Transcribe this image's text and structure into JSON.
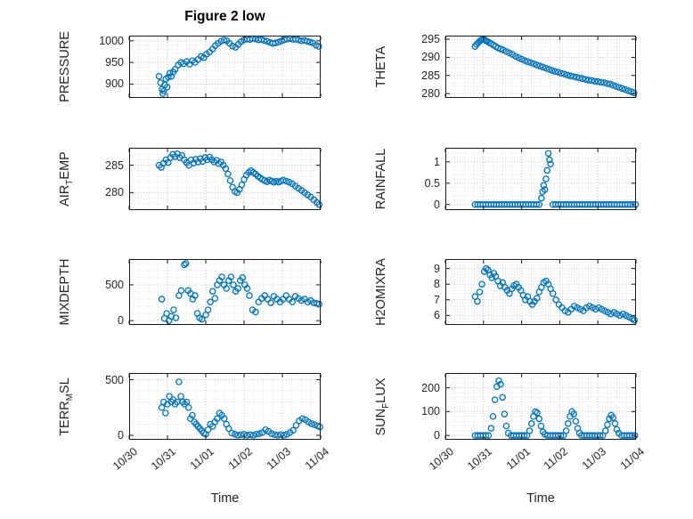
{
  "figure": {
    "title": "Figure 2 low",
    "xlabel": "Time",
    "marker_color": "#0072BD",
    "axis_color": "#262626",
    "xlim": [
      0,
      5
    ],
    "x_ticks": [
      0,
      1,
      2,
      3,
      4,
      5
    ],
    "x_tick_labels": [
      "10/30",
      "10/31",
      "11/01",
      "11/02",
      "11/03",
      "11/04"
    ],
    "grid": "minor dotted"
  },
  "chart_data": [
    {
      "type": "scatter",
      "name": "PRESSURE",
      "ylabel_parts": [
        "PRESSURE"
      ],
      "ylim": [
        868,
        1012
      ],
      "yticks": [
        900,
        950,
        1000
      ],
      "ytick_labels": [
        "900",
        "950",
        "1000"
      ],
      "x": [
        0.78,
        0.82,
        0.86,
        0.88,
        0.9,
        0.93,
        0.96,
        0.99,
        1.02,
        1.06,
        1.1,
        1.15,
        1.2,
        1.28,
        1.35,
        1.42,
        1.5,
        1.58,
        1.65,
        1.72,
        1.8,
        1.88,
        1.95,
        2.02,
        2.1,
        2.18,
        2.25,
        2.32,
        2.4,
        2.48,
        2.55,
        2.62,
        2.7,
        2.78,
        2.85,
        2.92,
        3.0,
        3.08,
        3.15,
        3.22,
        3.3,
        3.38,
        3.45,
        3.52,
        3.6,
        3.68,
        3.75,
        3.82,
        3.9,
        3.98,
        4.05,
        4.12,
        4.2,
        4.28,
        4.35,
        4.42,
        4.5,
        4.58,
        4.65,
        4.72,
        4.8,
        4.88,
        4.95
      ],
      "y": [
        918,
        903,
        888,
        878,
        884,
        898,
        912,
        893,
        916,
        925,
        918,
        928,
        934,
        944,
        950,
        947,
        952,
        946,
        954,
        950,
        957,
        964,
        961,
        969,
        974,
        981,
        989,
        994,
        999,
        1002,
        1000,
        994,
        988,
        985,
        992,
        998,
        1002,
        1004,
        1003,
        1005,
        1004,
        1002,
        1003,
        1001,
        999,
        996,
        994,
        995,
        997,
        1000,
        1002,
        1004,
        1005,
        1003,
        1004,
        1002,
        1000,
        1001,
        999,
        997,
        995,
        990,
        987
      ]
    },
    {
      "type": "scatter",
      "name": "THETA",
      "ylabel_parts": [
        "THETA"
      ],
      "ylim": [
        278.8,
        296
      ],
      "yticks": [
        280,
        285,
        290,
        295
      ],
      "ytick_labels": [
        "280",
        "285",
        "290",
        "295"
      ],
      "x": [
        0.78,
        0.82,
        0.86,
        0.9,
        0.94,
        0.98,
        1.02,
        1.06,
        1.1,
        1.15,
        1.2,
        1.26,
        1.32,
        1.38,
        1.45,
        1.52,
        1.6,
        1.68,
        1.76,
        1.84,
        1.92,
        2.0,
        2.08,
        2.16,
        2.24,
        2.32,
        2.4,
        2.48,
        2.56,
        2.64,
        2.72,
        2.8,
        2.88,
        2.96,
        3.04,
        3.12,
        3.2,
        3.28,
        3.36,
        3.44,
        3.52,
        3.6,
        3.68,
        3.76,
        3.84,
        3.92,
        4.0,
        4.08,
        4.16,
        4.24,
        4.32,
        4.4,
        4.48,
        4.56,
        4.64,
        4.72,
        4.8,
        4.88,
        4.95
      ],
      "y": [
        293.0,
        293.6,
        294.0,
        294.4,
        294.8,
        295.0,
        294.9,
        294.6,
        294.4,
        294.1,
        293.8,
        293.4,
        293.0,
        292.6,
        292.3,
        292.0,
        291.6,
        291.2,
        290.8,
        290.3,
        289.9,
        289.5,
        289.1,
        288.8,
        288.5,
        288.2,
        287.9,
        287.6,
        287.3,
        287.0,
        286.7,
        286.4,
        286.1,
        285.9,
        285.6,
        285.4,
        285.1,
        284.9,
        284.7,
        284.5,
        284.3,
        284.1,
        283.9,
        283.7,
        283.6,
        283.4,
        283.3,
        283.1,
        283.0,
        282.8,
        282.6,
        282.3,
        282.0,
        281.7,
        281.4,
        281.1,
        280.8,
        280.5,
        280.2
      ]
    },
    {
      "type": "scatter",
      "name": "AIR_TEMP",
      "ylabel_parts": [
        "AIR",
        "T",
        "EMP"
      ],
      "ylim": [
        276.8,
        288.2
      ],
      "yticks": [
        280,
        285
      ],
      "ytick_labels": [
        "280",
        "285"
      ],
      "x": [
        0.78,
        0.84,
        0.9,
        0.96,
        1.02,
        1.08,
        1.14,
        1.2,
        1.26,
        1.32,
        1.38,
        1.44,
        1.5,
        1.56,
        1.62,
        1.68,
        1.74,
        1.8,
        1.86,
        1.92,
        1.98,
        2.04,
        2.1,
        2.16,
        2.22,
        2.28,
        2.34,
        2.4,
        2.46,
        2.52,
        2.58,
        2.64,
        2.7,
        2.76,
        2.82,
        2.88,
        2.94,
        3.0,
        3.06,
        3.12,
        3.18,
        3.24,
        3.3,
        3.36,
        3.42,
        3.48,
        3.54,
        3.6,
        3.66,
        3.72,
        3.78,
        3.84,
        3.9,
        3.96,
        4.02,
        4.1,
        4.18,
        4.26,
        4.34,
        4.42,
        4.5,
        4.58,
        4.66,
        4.74,
        4.82,
        4.9,
        4.96
      ],
      "y": [
        285.0,
        284.6,
        285.4,
        286.0,
        285.5,
        286.4,
        287.0,
        286.6,
        287.1,
        286.4,
        286.8,
        286.0,
        285.5,
        285.0,
        286.0,
        285.4,
        286.1,
        285.6,
        286.2,
        285.7,
        286.4,
        286.0,
        286.5,
        286.0,
        285.6,
        285.9,
        285.3,
        285.6,
        285.0,
        284.4,
        283.4,
        282.2,
        281.0,
        280.2,
        280.0,
        280.6,
        281.4,
        282.4,
        283.2,
        283.7,
        284.0,
        283.7,
        283.4,
        283.0,
        282.7,
        282.4,
        282.2,
        282.0,
        282.3,
        282.1,
        281.9,
        282.1,
        281.9,
        282.1,
        282.3,
        282.1,
        281.9,
        281.6,
        281.2,
        280.8,
        280.4,
        280.0,
        279.6,
        279.2,
        278.7,
        278.2,
        277.8
      ]
    },
    {
      "type": "scatter",
      "name": "RAINFALL",
      "ylabel_parts": [
        "RAINFALL"
      ],
      "ylim": [
        -0.13,
        1.33
      ],
      "yticks": [
        0,
        0.5,
        1
      ],
      "ytick_labels": [
        "0",
        "0.5",
        "1"
      ],
      "x": [
        0.78,
        0.85,
        0.92,
        0.99,
        1.06,
        1.13,
        1.2,
        1.27,
        1.34,
        1.41,
        1.48,
        1.55,
        1.62,
        1.69,
        1.76,
        1.83,
        1.9,
        1.97,
        2.04,
        2.11,
        2.18,
        2.25,
        2.32,
        2.39,
        2.46,
        2.52,
        2.55,
        2.58,
        2.61,
        2.64,
        2.67,
        2.7,
        2.73,
        2.76,
        2.82,
        2.89,
        2.96,
        3.03,
        3.1,
        3.17,
        3.24,
        3.31,
        3.38,
        3.45,
        3.52,
        3.59,
        3.66,
        3.73,
        3.8,
        3.87,
        3.94,
        4.01,
        4.08,
        4.15,
        4.22,
        4.29,
        4.36,
        4.43,
        4.5,
        4.57,
        4.64,
        4.71,
        4.78,
        4.85,
        4.92,
        4.99
      ],
      "y": [
        0,
        0,
        0,
        0,
        0,
        0,
        0,
        0,
        0,
        0,
        0,
        0,
        0,
        0,
        0,
        0,
        0,
        0,
        0,
        0,
        0,
        0,
        0,
        0,
        0,
        0.15,
        0.3,
        0.45,
        0.35,
        0.6,
        0.8,
        1.2,
        1.05,
        0.95,
        0,
        0,
        0,
        0,
        0,
        0,
        0,
        0,
        0,
        0,
        0,
        0,
        0,
        0,
        0,
        0,
        0,
        0,
        0,
        0,
        0,
        0,
        0,
        0,
        0,
        0,
        0,
        0,
        0,
        0,
        0,
        0
      ]
    },
    {
      "type": "scatter",
      "name": "MIXDEPTH",
      "ylabel_parts": [
        "MIXDEPTH"
      ],
      "ylim": [
        -60,
        860
      ],
      "yticks": [
        0,
        500
      ],
      "ytick_labels": [
        "0",
        "500"
      ],
      "x": [
        0.85,
        0.92,
        0.98,
        1.04,
        1.1,
        1.16,
        1.22,
        1.3,
        1.36,
        1.44,
        1.48,
        1.54,
        1.6,
        1.66,
        1.72,
        1.78,
        1.84,
        1.9,
        2.0,
        2.06,
        2.12,
        2.18,
        2.24,
        2.3,
        2.36,
        2.42,
        2.48,
        2.54,
        2.6,
        2.66,
        2.72,
        2.78,
        2.84,
        2.9,
        2.96,
        3.02,
        3.08,
        3.14,
        3.22,
        3.3,
        3.38,
        3.46,
        3.54,
        3.62,
        3.7,
        3.78,
        3.86,
        3.94,
        4.02,
        4.1,
        4.18,
        4.26,
        4.34,
        4.42,
        4.5,
        4.58,
        4.66,
        4.74,
        4.82,
        4.9,
        4.96
      ],
      "y": [
        300,
        30,
        100,
        0,
        60,
        150,
        40,
        350,
        420,
        780,
        800,
        420,
        380,
        300,
        350,
        100,
        40,
        20,
        80,
        150,
        260,
        410,
        310,
        500,
        560,
        610,
        500,
        450,
        560,
        610,
        500,
        410,
        450,
        560,
        600,
        500,
        450,
        350,
        150,
        120,
        260,
        310,
        350,
        300,
        250,
        340,
        300,
        260,
        300,
        350,
        300,
        260,
        340,
        310,
        280,
        300,
        260,
        280,
        250,
        240,
        230
      ]
    },
    {
      "type": "scatter",
      "name": "H2OMIXRA",
      "ylabel_parts": [
        "H2OMIXRA"
      ],
      "ylim": [
        5.4,
        9.6
      ],
      "yticks": [
        6,
        7,
        8,
        9
      ],
      "ytick_labels": [
        "6",
        "7",
        "8",
        "9"
      ],
      "x": [
        0.78,
        0.84,
        0.9,
        0.96,
        1.02,
        1.07,
        1.12,
        1.17,
        1.22,
        1.27,
        1.32,
        1.38,
        1.44,
        1.5,
        1.56,
        1.62,
        1.68,
        1.74,
        1.8,
        1.86,
        1.92,
        1.98,
        2.04,
        2.1,
        2.16,
        2.22,
        2.28,
        2.34,
        2.4,
        2.46,
        2.52,
        2.58,
        2.64,
        2.7,
        2.76,
        2.82,
        2.9,
        2.98,
        3.06,
        3.14,
        3.22,
        3.3,
        3.38,
        3.46,
        3.54,
        3.62,
        3.7,
        3.78,
        3.86,
        3.94,
        4.02,
        4.1,
        4.18,
        4.26,
        4.34,
        4.42,
        4.5,
        4.58,
        4.66,
        4.74,
        4.82,
        4.9,
        4.96
      ],
      "y": [
        7.2,
        6.9,
        7.5,
        8.0,
        8.8,
        9.0,
        8.9,
        8.6,
        8.4,
        8.7,
        8.5,
        8.2,
        7.9,
        8.1,
        7.8,
        7.6,
        7.4,
        7.7,
        7.9,
        8.0,
        7.8,
        7.6,
        7.3,
        7.0,
        7.2,
        6.9,
        6.7,
        6.9,
        7.1,
        7.5,
        7.8,
        8.1,
        8.2,
        8.0,
        7.7,
        7.4,
        7.0,
        6.7,
        6.5,
        6.3,
        6.2,
        6.4,
        6.6,
        6.5,
        6.4,
        6.3,
        6.5,
        6.6,
        6.5,
        6.4,
        6.5,
        6.4,
        6.3,
        6.2,
        6.1,
        6.2,
        6.1,
        6.0,
        6.1,
        6.0,
        5.9,
        5.8,
        5.7
      ]
    },
    {
      "type": "scatter",
      "name": "TERR_MSL",
      "ylabel_parts": [
        "TERR",
        "M",
        "SL"
      ],
      "ylim": [
        -40,
        560
      ],
      "yticks": [
        0,
        500
      ],
      "ytick_labels": [
        "0",
        "500"
      ],
      "x": [
        0.85,
        0.9,
        0.95,
        1.0,
        1.05,
        1.1,
        1.15,
        1.2,
        1.25,
        1.3,
        1.35,
        1.4,
        1.45,
        1.5,
        1.55,
        1.6,
        1.65,
        1.7,
        1.75,
        1.8,
        1.85,
        1.9,
        1.95,
        2.0,
        2.06,
        2.12,
        2.18,
        2.24,
        2.3,
        2.36,
        2.42,
        2.48,
        2.54,
        2.6,
        2.68,
        2.76,
        2.84,
        2.92,
        3.0,
        3.08,
        3.16,
        3.24,
        3.32,
        3.4,
        3.48,
        3.56,
        3.64,
        3.72,
        3.8,
        3.88,
        3.96,
        4.04,
        4.12,
        4.2,
        4.28,
        4.36,
        4.44,
        4.52,
        4.6,
        4.68,
        4.76,
        4.84,
        4.92,
        4.98
      ],
      "y": [
        250,
        300,
        200,
        280,
        350,
        300,
        320,
        280,
        300,
        480,
        350,
        300,
        280,
        300,
        250,
        150,
        180,
        120,
        100,
        80,
        60,
        40,
        20,
        10,
        50,
        100,
        80,
        120,
        150,
        200,
        180,
        150,
        100,
        60,
        20,
        10,
        0,
        5,
        10,
        0,
        5,
        0,
        10,
        15,
        25,
        50,
        35,
        15,
        5,
        0,
        5,
        0,
        10,
        25,
        45,
        90,
        130,
        150,
        140,
        120,
        105,
        95,
        85,
        75
      ]
    },
    {
      "type": "scatter",
      "name": "SUN_FLUX",
      "ylabel_parts": [
        "SUN",
        "F",
        "LUX"
      ],
      "ylim": [
        -18,
        262
      ],
      "yticks": [
        0,
        100,
        200
      ],
      "ytick_labels": [
        "0",
        "100",
        "200"
      ],
      "x": [
        0.78,
        0.85,
        0.92,
        0.99,
        1.06,
        1.13,
        1.2,
        1.25,
        1.3,
        1.35,
        1.4,
        1.45,
        1.5,
        1.55,
        1.6,
        1.65,
        1.72,
        1.79,
        1.86,
        1.93,
        2.0,
        2.07,
        2.14,
        2.21,
        2.26,
        2.31,
        2.36,
        2.41,
        2.46,
        2.51,
        2.56,
        2.61,
        2.68,
        2.75,
        2.82,
        2.89,
        2.96,
        3.03,
        3.1,
        3.17,
        3.22,
        3.27,
        3.32,
        3.37,
        3.42,
        3.47,
        3.52,
        3.57,
        3.64,
        3.71,
        3.78,
        3.85,
        3.92,
        3.99,
        4.06,
        4.13,
        4.2,
        4.25,
        4.3,
        4.35,
        4.4,
        4.45,
        4.5,
        4.55,
        4.62,
        4.69,
        4.76,
        4.83,
        4.9,
        4.97
      ],
      "y": [
        0,
        0,
        0,
        0,
        0,
        0,
        30,
        80,
        150,
        205,
        230,
        215,
        160,
        90,
        40,
        10,
        0,
        0,
        0,
        0,
        0,
        0,
        0,
        20,
        50,
        80,
        100,
        95,
        70,
        40,
        15,
        5,
        0,
        0,
        0,
        0,
        0,
        0,
        0,
        20,
        50,
        80,
        100,
        90,
        60,
        30,
        10,
        0,
        0,
        0,
        0,
        0,
        0,
        0,
        0,
        0,
        20,
        45,
        70,
        85,
        75,
        50,
        25,
        10,
        0,
        0,
        0,
        0,
        0,
        0
      ]
    }
  ]
}
